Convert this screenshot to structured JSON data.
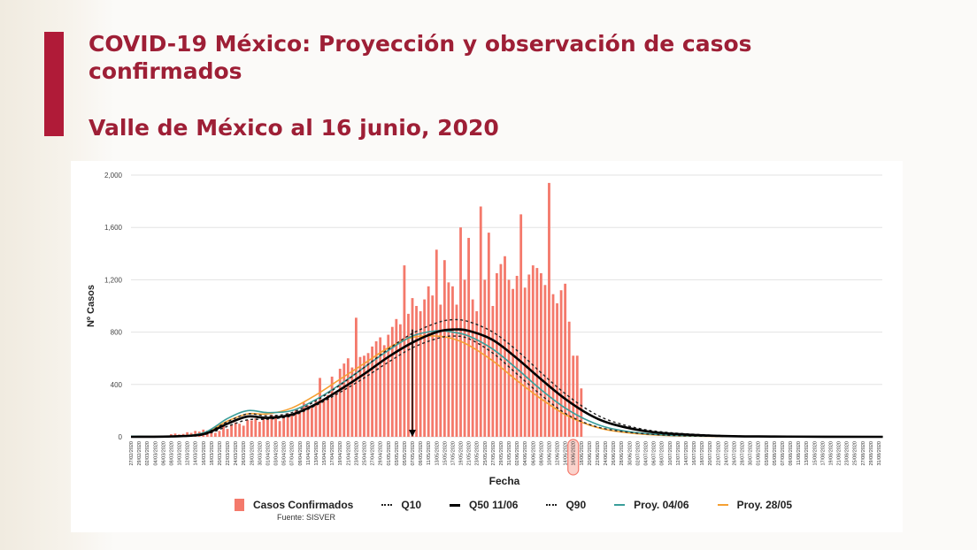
{
  "slide": {
    "title": "COVID-19 México: Proyección y observación de casos confirmados",
    "subtitle": "Valle de México al 16 junio, 2020",
    "source": "Fuente: SISVER",
    "accent_color": "#b01b38",
    "title_color": "#9e1f36"
  },
  "chart_data": {
    "type": "bar",
    "title": "",
    "xlabel": "Fecha",
    "ylabel": "Nº Casos",
    "ylim": [
      0,
      2000
    ],
    "yticks": [
      0,
      400,
      800,
      1200,
      1600,
      2000
    ],
    "ytick_labels": [
      "0",
      "400",
      "800",
      "1,200",
      "1,600",
      "2,000"
    ],
    "grid": true,
    "legend_position": "bottom",
    "x_start": "27/02/2020",
    "x_end": "31/08/2020",
    "x_tick_step_days": 2,
    "highlighted_tick": "16/06/2020",
    "peak_marker_date": "07/05/2020",
    "colors": {
      "bars": "#f4796b",
      "q10": "#222222",
      "q50": "#000000",
      "q90": "#222222",
      "proy_0406": "#3a9e9a",
      "proy_2805": "#f5a033",
      "highlight": "#f4796b"
    },
    "legend": [
      {
        "key": "bars",
        "label": "Casos Confirmados",
        "style": "box"
      },
      {
        "key": "q10",
        "label": "Q10",
        "style": "dotted"
      },
      {
        "key": "q50",
        "label": "Q50 11/06",
        "style": "solid-thick"
      },
      {
        "key": "q90",
        "label": "Q90",
        "style": "dotted"
      },
      {
        "key": "proy_0406",
        "label": "Proy. 04/06",
        "style": "solid"
      },
      {
        "key": "proy_2805",
        "label": "Proy. 28/05",
        "style": "solid"
      }
    ],
    "bars": {
      "name": "Casos Confirmados",
      "start_day": 5,
      "values": [
        5,
        8,
        4,
        10,
        6,
        20,
        25,
        18,
        22,
        35,
        30,
        45,
        40,
        55,
        48,
        35,
        30,
        45,
        80,
        60,
        95,
        110,
        100,
        85,
        130,
        125,
        140,
        115,
        145,
        150,
        170,
        160,
        120,
        155,
        180,
        175,
        210,
        190,
        260,
        240,
        230,
        270,
        450,
        280,
        320,
        460,
        340,
        520,
        560,
        600,
        530,
        910,
        610,
        620,
        640,
        690,
        730,
        760,
        700,
        780,
        840,
        900,
        860,
        1310,
        940,
        1060,
        1000,
        960,
        1050,
        1150,
        1080,
        1430,
        1010,
        1350,
        1180,
        1150,
        1010,
        1600,
        1200,
        1520,
        1050,
        960,
        1760,
        1200,
        1560,
        1000,
        1250,
        1320,
        1380,
        1200,
        1130,
        1230,
        1700,
        1140,
        1240,
        1310,
        1290,
        1250,
        1160,
        1940,
        1090,
        1020,
        1120,
        1170,
        880,
        620,
        620,
        370
      ]
    },
    "series": [
      {
        "name": "Q10",
        "key": "q10",
        "points": [
          [
            0,
            0
          ],
          [
            10,
            2
          ],
          [
            18,
            15
          ],
          [
            24,
            80
          ],
          [
            29,
            130
          ],
          [
            34,
            135
          ],
          [
            40,
            160
          ],
          [
            46,
            240
          ],
          [
            52,
            340
          ],
          [
            58,
            450
          ],
          [
            64,
            570
          ],
          [
            70,
            680
          ],
          [
            76,
            750
          ],
          [
            80,
            770
          ],
          [
            84,
            750
          ],
          [
            90,
            640
          ],
          [
            96,
            480
          ],
          [
            102,
            320
          ],
          [
            108,
            180
          ],
          [
            114,
            95
          ],
          [
            120,
            50
          ],
          [
            130,
            18
          ],
          [
            145,
            4
          ],
          [
            187,
            0
          ]
        ]
      },
      {
        "name": "Q50 11/06",
        "key": "q50",
        "points": [
          [
            0,
            0
          ],
          [
            10,
            3
          ],
          [
            18,
            20
          ],
          [
            24,
            100
          ],
          [
            29,
            155
          ],
          [
            34,
            145
          ],
          [
            40,
            170
          ],
          [
            46,
            250
          ],
          [
            52,
            360
          ],
          [
            58,
            480
          ],
          [
            64,
            610
          ],
          [
            70,
            720
          ],
          [
            76,
            800
          ],
          [
            80,
            820
          ],
          [
            84,
            810
          ],
          [
            90,
            740
          ],
          [
            96,
            600
          ],
          [
            102,
            440
          ],
          [
            108,
            290
          ],
          [
            114,
            170
          ],
          [
            120,
            95
          ],
          [
            130,
            35
          ],
          [
            145,
            8
          ],
          [
            160,
            2
          ],
          [
            187,
            0
          ]
        ]
      },
      {
        "name": "Q90",
        "key": "q90",
        "points": [
          [
            0,
            0
          ],
          [
            10,
            4
          ],
          [
            18,
            25
          ],
          [
            24,
            115
          ],
          [
            29,
            175
          ],
          [
            34,
            160
          ],
          [
            40,
            185
          ],
          [
            46,
            275
          ],
          [
            52,
            395
          ],
          [
            58,
            530
          ],
          [
            64,
            670
          ],
          [
            70,
            790
          ],
          [
            76,
            870
          ],
          [
            80,
            895
          ],
          [
            84,
            880
          ],
          [
            90,
            800
          ],
          [
            96,
            660
          ],
          [
            102,
            490
          ],
          [
            108,
            330
          ],
          [
            114,
            200
          ],
          [
            120,
            115
          ],
          [
            130,
            45
          ],
          [
            145,
            12
          ],
          [
            160,
            3
          ],
          [
            187,
            0
          ]
        ]
      },
      {
        "name": "Proy. 04/06",
        "key": "proy_0406",
        "points": [
          [
            0,
            5
          ],
          [
            10,
            4
          ],
          [
            18,
            30
          ],
          [
            24,
            140
          ],
          [
            29,
            200
          ],
          [
            34,
            185
          ],
          [
            40,
            200
          ],
          [
            46,
            285
          ],
          [
            52,
            400
          ],
          [
            58,
            530
          ],
          [
            64,
            660
          ],
          [
            70,
            770
          ],
          [
            76,
            810
          ],
          [
            80,
            800
          ],
          [
            84,
            770
          ],
          [
            90,
            670
          ],
          [
            96,
            520
          ],
          [
            102,
            360
          ],
          [
            108,
            220
          ],
          [
            114,
            120
          ],
          [
            120,
            60
          ],
          [
            130,
            20
          ],
          [
            145,
            5
          ],
          [
            187,
            0
          ]
        ]
      },
      {
        "name": "Proy. 28/05",
        "key": "proy_2805",
        "points": [
          [
            0,
            3
          ],
          [
            10,
            4
          ],
          [
            18,
            28
          ],
          [
            24,
            120
          ],
          [
            29,
            175
          ],
          [
            34,
            175
          ],
          [
            40,
            220
          ],
          [
            46,
            320
          ],
          [
            52,
            440
          ],
          [
            58,
            560
          ],
          [
            64,
            680
          ],
          [
            70,
            760
          ],
          [
            76,
            770
          ],
          [
            80,
            750
          ],
          [
            84,
            700
          ],
          [
            90,
            580
          ],
          [
            96,
            430
          ],
          [
            102,
            290
          ],
          [
            108,
            170
          ],
          [
            114,
            90
          ],
          [
            120,
            45
          ],
          [
            130,
            15
          ],
          [
            145,
            4
          ],
          [
            187,
            0
          ]
        ]
      }
    ]
  }
}
